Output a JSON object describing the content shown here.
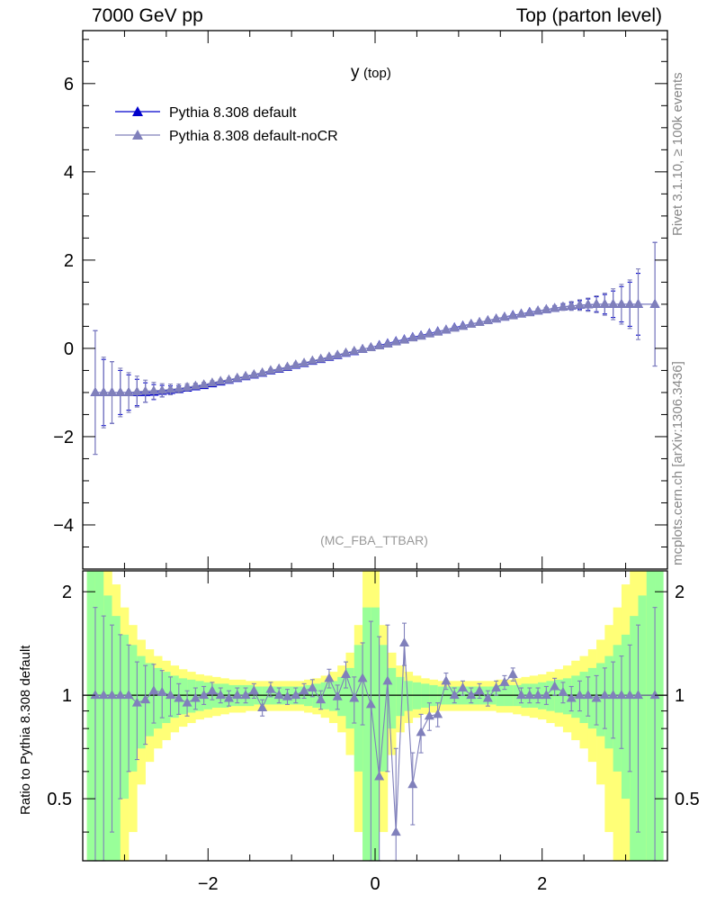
{
  "header": {
    "left": "7000 GeV pp",
    "right": "Top (parton level)"
  },
  "side_labels": {
    "rivet": "Rivet 3.1.10, ≥ 100k events",
    "mcplots": "mcplots.cern.ch [arXiv:1306.3436]"
  },
  "chart_data": [
    {
      "type": "scatter",
      "title": "y",
      "title_sub": "(top)",
      "watermark": "(MC_FBA_TTBAR)",
      "xlim": [
        -3.5,
        3.5
      ],
      "ylim": [
        -5,
        7.2
      ],
      "yticks": [
        -4,
        -2,
        0,
        2,
        4,
        6
      ],
      "xticks": [
        -2,
        0,
        2
      ],
      "legend_position": "top-left",
      "colors": {
        "default": "#0000cc",
        "noCR": "#8080bb"
      },
      "series": [
        {
          "name": "Pythia 8.308 default",
          "x": [
            -3.35,
            -3.25,
            -3.15,
            -3.05,
            -2.95,
            -2.85,
            -2.75,
            -2.65,
            -2.55,
            -2.45,
            -2.35,
            -2.25,
            -2.15,
            -2.05,
            -1.95,
            -1.85,
            -1.75,
            -1.65,
            -1.55,
            -1.45,
            -1.35,
            -1.25,
            -1.15,
            -1.05,
            -0.95,
            -0.85,
            -0.75,
            -0.65,
            -0.55,
            -0.45,
            -0.35,
            -0.25,
            -0.15,
            -0.05,
            0.05,
            0.15,
            0.25,
            0.35,
            0.45,
            0.55,
            0.65,
            0.75,
            0.85,
            0.95,
            1.05,
            1.15,
            1.25,
            1.35,
            1.45,
            1.55,
            1.65,
            1.75,
            1.85,
            1.95,
            2.05,
            2.15,
            2.25,
            2.35,
            2.45,
            2.55,
            2.65,
            2.75,
            2.85,
            2.95,
            3.05,
            3.15,
            3.35
          ],
          "y": [
            -1.0,
            -1.0,
            -1.0,
            -1.0,
            -1.0,
            -1.0,
            -1.0,
            -0.99,
            -0.97,
            -0.95,
            -0.93,
            -0.9,
            -0.87,
            -0.84,
            -0.8,
            -0.76,
            -0.72,
            -0.68,
            -0.64,
            -0.6,
            -0.56,
            -0.51,
            -0.47,
            -0.43,
            -0.38,
            -0.34,
            -0.29,
            -0.25,
            -0.2,
            -0.16,
            -0.11,
            -0.07,
            -0.02,
            0.02,
            0.07,
            0.11,
            0.16,
            0.2,
            0.25,
            0.29,
            0.34,
            0.38,
            0.42,
            0.47,
            0.51,
            0.55,
            0.59,
            0.63,
            0.67,
            0.71,
            0.75,
            0.78,
            0.82,
            0.85,
            0.88,
            0.91,
            0.94,
            0.96,
            0.98,
            0.99,
            1.0,
            1.0,
            1.0,
            1.0,
            1.0,
            1.0,
            1.0
          ],
          "yerr": [
            1.4,
            0.75,
            0.7,
            0.5,
            0.4,
            0.3,
            0.22,
            0.17,
            0.13,
            0.1,
            0.08,
            0.06,
            0.05,
            0.04,
            0.035,
            0.03,
            0.03,
            0.03,
            0.03,
            0.03,
            0.03,
            0.03,
            0.03,
            0.03,
            0.03,
            0.03,
            0.03,
            0.03,
            0.03,
            0.03,
            0.03,
            0.03,
            0.03,
            0.03,
            0.03,
            0.03,
            0.03,
            0.03,
            0.03,
            0.03,
            0.03,
            0.03,
            0.03,
            0.03,
            0.03,
            0.03,
            0.03,
            0.03,
            0.03,
            0.03,
            0.03,
            0.03,
            0.03,
            0.035,
            0.04,
            0.05,
            0.06,
            0.08,
            0.1,
            0.13,
            0.17,
            0.22,
            0.3,
            0.4,
            0.5,
            0.7,
            1.4
          ]
        },
        {
          "name": "Pythia 8.308 default-noCR",
          "x": [
            -3.35,
            -3.25,
            -3.15,
            -3.05,
            -2.95,
            -2.85,
            -2.75,
            -2.65,
            -2.55,
            -2.45,
            -2.35,
            -2.25,
            -2.15,
            -2.05,
            -1.95,
            -1.85,
            -1.75,
            -1.65,
            -1.55,
            -1.45,
            -1.35,
            -1.25,
            -1.15,
            -1.05,
            -0.95,
            -0.85,
            -0.75,
            -0.65,
            -0.55,
            -0.45,
            -0.35,
            -0.25,
            -0.15,
            -0.05,
            0.05,
            0.15,
            0.25,
            0.35,
            0.45,
            0.55,
            0.65,
            0.75,
            0.85,
            0.95,
            1.05,
            1.15,
            1.25,
            1.35,
            1.45,
            1.55,
            1.65,
            1.75,
            1.85,
            1.95,
            2.05,
            2.15,
            2.25,
            2.35,
            2.45,
            2.55,
            2.65,
            2.75,
            2.85,
            2.95,
            3.05,
            3.15,
            3.35
          ],
          "y": [
            -1.0,
            -1.0,
            -1.0,
            -1.0,
            -1.0,
            -0.98,
            -0.97,
            -0.96,
            -0.95,
            -0.93,
            -0.91,
            -0.88,
            -0.85,
            -0.82,
            -0.78,
            -0.74,
            -0.71,
            -0.67,
            -0.63,
            -0.59,
            -0.55,
            -0.5,
            -0.46,
            -0.42,
            -0.37,
            -0.33,
            -0.28,
            -0.24,
            -0.19,
            -0.15,
            -0.1,
            -0.06,
            -0.02,
            0.02,
            0.06,
            0.1,
            0.15,
            0.19,
            0.24,
            0.28,
            0.33,
            0.37,
            0.42,
            0.46,
            0.5,
            0.55,
            0.59,
            0.63,
            0.67,
            0.71,
            0.74,
            0.78,
            0.81,
            0.85,
            0.88,
            0.91,
            0.94,
            0.96,
            0.98,
            0.99,
            1.0,
            1.0,
            1.0,
            1.0,
            1.0,
            1.0,
            1.0
          ],
          "yerr": [
            1.4,
            0.8,
            0.7,
            0.55,
            0.45,
            0.35,
            0.25,
            0.19,
            0.15,
            0.12,
            0.1,
            0.08,
            0.06,
            0.05,
            0.045,
            0.04,
            0.04,
            0.04,
            0.04,
            0.04,
            0.04,
            0.04,
            0.04,
            0.04,
            0.04,
            0.04,
            0.04,
            0.04,
            0.04,
            0.04,
            0.04,
            0.04,
            0.04,
            0.04,
            0.04,
            0.04,
            0.04,
            0.04,
            0.04,
            0.04,
            0.04,
            0.04,
            0.04,
            0.04,
            0.04,
            0.04,
            0.04,
            0.04,
            0.04,
            0.04,
            0.04,
            0.04,
            0.04,
            0.045,
            0.05,
            0.06,
            0.08,
            0.1,
            0.12,
            0.15,
            0.19,
            0.25,
            0.35,
            0.45,
            0.55,
            0.8,
            1.4
          ]
        }
      ]
    },
    {
      "type": "scatter",
      "ylabel": "Ratio to Pythia 8.308 default",
      "xlim": [
        -3.5,
        3.5
      ],
      "ylim": [
        0.33,
        2.3
      ],
      "yticks": [
        0.5,
        1,
        2
      ],
      "xticks": [
        -2,
        0,
        2
      ],
      "colors": {
        "band_inner": "#99ff99",
        "band_outer": "#ffff77",
        "points": "#8080bb"
      },
      "band_x": [
        -3.4,
        -3.3,
        -3.2,
        -3.1,
        -3.0,
        -2.9,
        -2.8,
        -2.7,
        -2.6,
        -2.5,
        -2.4,
        -2.3,
        -2.2,
        -2.1,
        -2.0,
        -1.9,
        -1.8,
        -1.7,
        -1.6,
        -1.5,
        -1.4,
        -1.3,
        -1.2,
        -1.1,
        -1.0,
        -0.9,
        -0.8,
        -0.7,
        -0.6,
        -0.5,
        -0.4,
        -0.3,
        -0.2,
        -0.1,
        0.0,
        0.1,
        0.2,
        0.3,
        0.4,
        0.5,
        0.6,
        0.7,
        0.8,
        0.9,
        1.0,
        1.1,
        1.2,
        1.3,
        1.4,
        1.5,
        1.6,
        1.7,
        1.8,
        1.9,
        2.0,
        2.1,
        2.2,
        2.3,
        2.4,
        2.5,
        2.6,
        2.7,
        2.8,
        2.9,
        3.0,
        3.1,
        3.2,
        3.3,
        3.4
      ],
      "band_inner": [
        1.7,
        1.45,
        0.95,
        0.7,
        0.5,
        0.4,
        0.3,
        0.24,
        0.2,
        0.17,
        0.14,
        0.12,
        0.11,
        0.1,
        0.09,
        0.08,
        0.08,
        0.07,
        0.07,
        0.07,
        0.06,
        0.06,
        0.06,
        0.06,
        0.06,
        0.06,
        0.07,
        0.08,
        0.09,
        0.1,
        0.13,
        0.2,
        0.4,
        0.8,
        0.8,
        0.4,
        0.2,
        0.13,
        0.1,
        0.09,
        0.08,
        0.07,
        0.06,
        0.06,
        0.06,
        0.06,
        0.06,
        0.06,
        0.06,
        0.07,
        0.07,
        0.07,
        0.08,
        0.08,
        0.09,
        0.1,
        0.11,
        0.12,
        0.14,
        0.17,
        0.2,
        0.24,
        0.3,
        0.4,
        0.5,
        0.7,
        0.95,
        1.45,
        1.7
      ],
      "band_outer": [
        2.0,
        1.9,
        1.5,
        1.1,
        0.8,
        0.6,
        0.45,
        0.36,
        0.3,
        0.26,
        0.22,
        0.19,
        0.17,
        0.15,
        0.14,
        0.13,
        0.12,
        0.11,
        0.11,
        0.1,
        0.1,
        0.1,
        0.1,
        0.1,
        0.1,
        0.1,
        0.11,
        0.12,
        0.14,
        0.17,
        0.22,
        0.33,
        0.6,
        1.3,
        1.3,
        0.6,
        0.33,
        0.22,
        0.17,
        0.14,
        0.12,
        0.11,
        0.1,
        0.1,
        0.1,
        0.1,
        0.1,
        0.1,
        0.1,
        0.11,
        0.11,
        0.12,
        0.13,
        0.14,
        0.15,
        0.17,
        0.19,
        0.22,
        0.26,
        0.3,
        0.36,
        0.45,
        0.6,
        0.8,
        1.1,
        1.5,
        1.9,
        2.0
      ],
      "ratio_x": [
        -3.35,
        -3.25,
        -3.15,
        -3.05,
        -2.95,
        -2.85,
        -2.75,
        -2.65,
        -2.55,
        -2.45,
        -2.35,
        -2.25,
        -2.15,
        -2.05,
        -1.95,
        -1.85,
        -1.75,
        -1.65,
        -1.55,
        -1.45,
        -1.35,
        -1.25,
        -1.15,
        -1.05,
        -0.95,
        -0.85,
        -0.75,
        -0.65,
        -0.55,
        -0.45,
        -0.35,
        -0.25,
        -0.15,
        -0.05,
        0.05,
        0.15,
        0.25,
        0.35,
        0.45,
        0.55,
        0.65,
        0.75,
        0.85,
        0.95,
        1.05,
        1.15,
        1.25,
        1.35,
        1.45,
        1.55,
        1.65,
        1.75,
        1.85,
        1.95,
        2.05,
        2.15,
        2.25,
        2.35,
        2.45,
        2.55,
        2.65,
        2.75,
        2.85,
        2.95,
        3.05,
        3.15,
        3.35
      ],
      "ratio_y": [
        1.0,
        1.0,
        1.0,
        1.0,
        1.0,
        0.95,
        0.97,
        1.03,
        1.02,
        1.0,
        0.98,
        0.95,
        0.98,
        1.0,
        1.03,
        1.0,
        0.98,
        1.0,
        1.0,
        1.03,
        0.92,
        1.04,
        1.0,
        0.99,
        1.0,
        1.03,
        1.05,
        0.97,
        1.12,
        0.99,
        1.15,
        0.98,
        1.12,
        0.94,
        0.58,
        1.1,
        0.4,
        1.42,
        0.55,
        0.78,
        0.87,
        0.88,
        1.1,
        1.0,
        1.05,
        1.0,
        1.03,
        0.98,
        1.05,
        1.09,
        1.15,
        1.0,
        1.0,
        1.0,
        1.0,
        1.06,
        1.02,
        0.98,
        1.0,
        1.0,
        0.98,
        1.0,
        1.0,
        1.0,
        1.0,
        1.0,
        1.0
      ],
      "ratio_err": [
        0.8,
        0.7,
        0.6,
        0.5,
        0.4,
        0.3,
        0.25,
        0.2,
        0.16,
        0.13,
        0.1,
        0.08,
        0.07,
        0.06,
        0.06,
        0.05,
        0.05,
        0.05,
        0.05,
        0.05,
        0.05,
        0.05,
        0.05,
        0.05,
        0.05,
        0.05,
        0.06,
        0.06,
        0.07,
        0.08,
        0.1,
        0.15,
        0.3,
        0.7,
        0.9,
        0.5,
        0.3,
        0.2,
        0.13,
        0.1,
        0.08,
        0.07,
        0.06,
        0.05,
        0.05,
        0.05,
        0.05,
        0.05,
        0.05,
        0.05,
        0.05,
        0.05,
        0.05,
        0.05,
        0.06,
        0.06,
        0.07,
        0.08,
        0.1,
        0.13,
        0.16,
        0.2,
        0.25,
        0.3,
        0.4,
        0.6,
        0.8
      ]
    }
  ]
}
